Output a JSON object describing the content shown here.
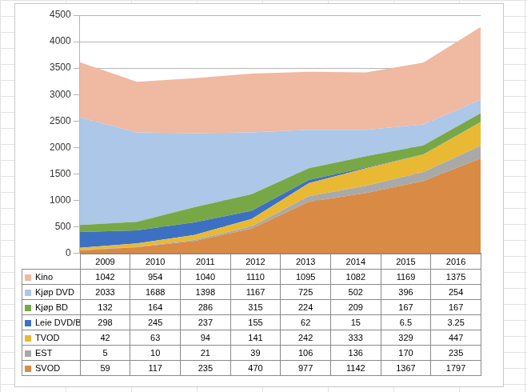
{
  "chart_data": {
    "type": "area",
    "categories": [
      "2009",
      "2010",
      "2011",
      "2012",
      "2013",
      "2014",
      "2015",
      "2016"
    ],
    "series": [
      {
        "name": "Kino",
        "color": "#f0b9a2",
        "values": [
          1042,
          954,
          1040,
          1110,
          1095,
          1082,
          1169,
          1375
        ]
      },
      {
        "name": "Kjøp DVD",
        "color": "#adc7e8",
        "values": [
          2033,
          1688,
          1398,
          1167,
          725,
          502,
          396,
          254
        ]
      },
      {
        "name": "Kjøp BD",
        "color": "#78a845",
        "values": [
          132,
          164,
          286,
          315,
          224,
          209,
          167,
          167
        ]
      },
      {
        "name": "Leie DVD/BD",
        "color": "#3c70c2",
        "values": [
          298,
          245,
          237,
          155,
          62,
          15,
          6.5,
          3.25
        ]
      },
      {
        "name": "TVOD",
        "color": "#e9b934",
        "values": [
          42,
          63,
          94,
          141,
          242,
          333,
          329,
          447
        ]
      },
      {
        "name": "EST",
        "color": "#a9a9a9",
        "values": [
          5,
          10,
          21,
          39,
          106,
          136,
          170,
          235
        ]
      },
      {
        "name": "SVOD",
        "color": "#d98a45",
        "values": [
          59,
          117,
          235,
          470,
          977,
          1142,
          1367,
          1797
        ]
      }
    ],
    "ylim": [
      0,
      4500
    ],
    "yticks": [
      0,
      500,
      1000,
      1500,
      2000,
      2500,
      3000,
      3500,
      4000,
      4500
    ],
    "grid": true,
    "stacked": true,
    "tick_labels": "y"
  }
}
